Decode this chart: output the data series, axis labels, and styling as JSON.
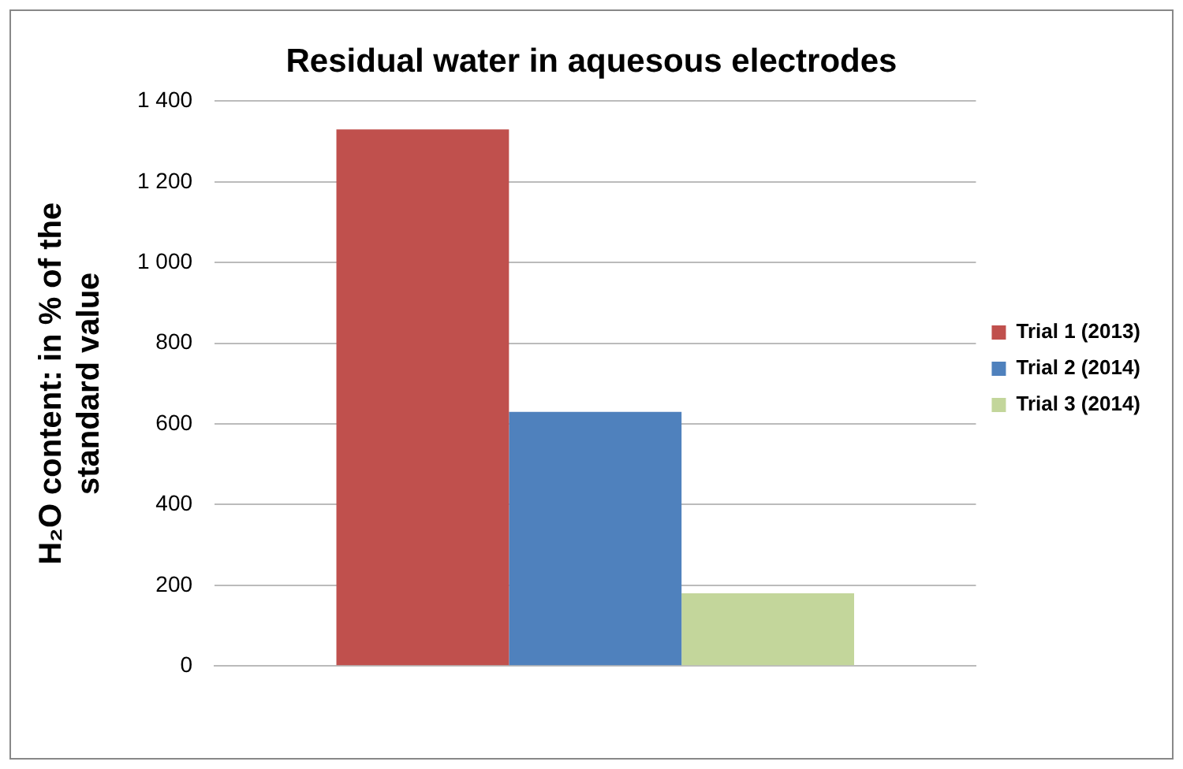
{
  "chart_data": {
    "type": "bar",
    "title": "Residual water in aquesous electrodes",
    "ylabel": "H₂O content: in % of the standard value",
    "categories": [
      null
    ],
    "series": [
      {
        "name": "Trial 1 (2013)",
        "color": "#c0504d",
        "values": [
          1330
        ]
      },
      {
        "name": "Trial 2 (2014)",
        "color": "#4f81bd",
        "values": [
          630
        ]
      },
      {
        "name": "Trial 3 (2014)",
        "color": "#c3d69b",
        "values": [
          180
        ]
      }
    ],
    "ylim": [
      0,
      1400
    ],
    "yticks": [
      0,
      200,
      400,
      600,
      800,
      {
        "value": 1000,
        "label": "1 000"
      },
      {
        "value": 1200,
        "label": "1 200"
      },
      {
        "value": 1400,
        "label": "1 400"
      }
    ],
    "grid": "y",
    "legend": "right"
  }
}
